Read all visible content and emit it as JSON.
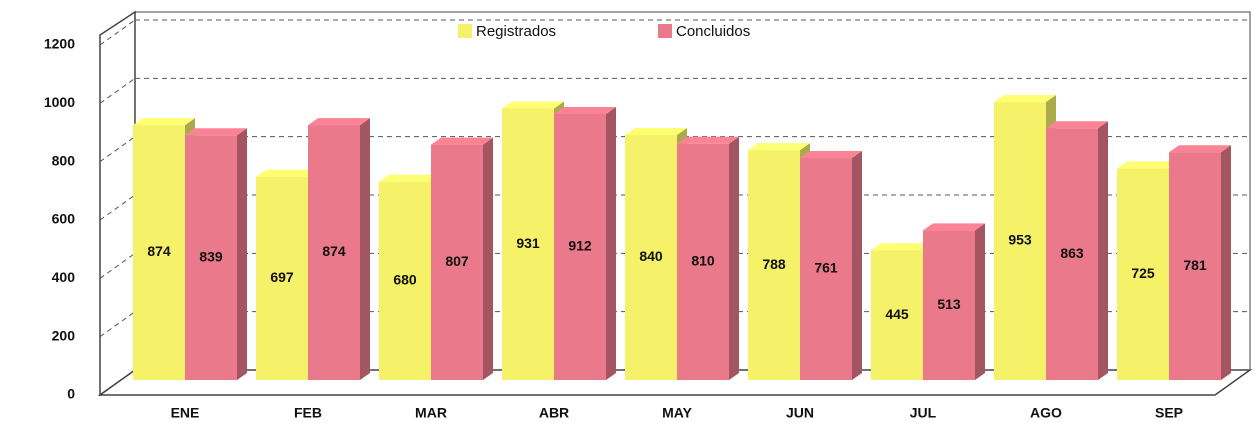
{
  "chart_data": {
    "type": "bar",
    "categories": [
      "ENE",
      "FEB",
      "MAR",
      "ABR",
      "MAY",
      "JUN",
      "JUL",
      "AGO",
      "SEP"
    ],
    "series": [
      {
        "name": "Registrados",
        "color": "#f5f26a",
        "values": [
          874,
          697,
          680,
          931,
          840,
          788,
          445,
          953,
          725
        ]
      },
      {
        "name": "Concluidos",
        "color": "#e9798b",
        "values": [
          839,
          874,
          807,
          912,
          810,
          761,
          513,
          863,
          781
        ]
      }
    ],
    "ylim": [
      0,
      1200
    ],
    "yticks": [
      0,
      200,
      400,
      600,
      800,
      1000,
      1200
    ],
    "grid": true,
    "legend": "top"
  }
}
